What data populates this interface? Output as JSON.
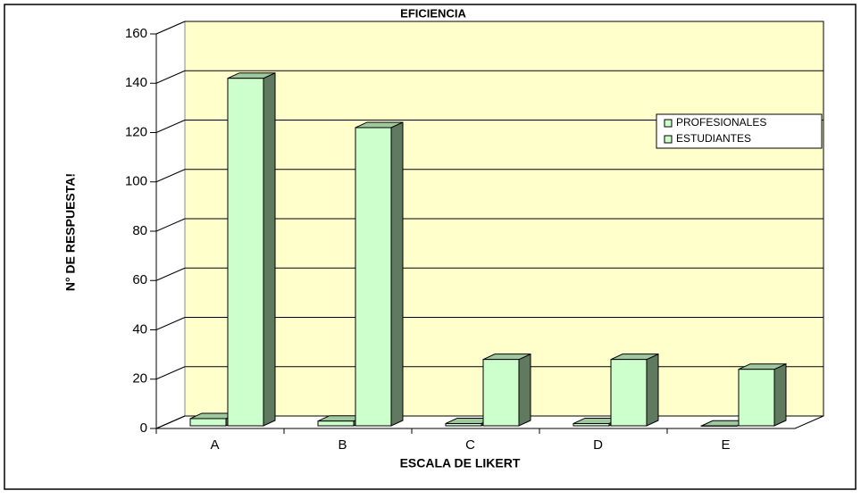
{
  "chart_data": {
    "type": "bar3d",
    "title": "EFICIENCIA",
    "x_label": "ESCALA DE LIKERT",
    "y_label": "N° DE RESPUESTA!",
    "categories": [
      "A",
      "B",
      "C",
      "D",
      "E"
    ],
    "series": [
      {
        "name": "PROFESIONALES",
        "color": "#ccffcc",
        "values": [
          4,
          3,
          2,
          2,
          1
        ]
      },
      {
        "name": "ESTUDIANTES",
        "color": "#ccffcc",
        "values": [
          142,
          122,
          28,
          28,
          24
        ]
      }
    ],
    "ylim": [
      0,
      160
    ],
    "yticks": [
      0,
      20,
      40,
      60,
      80,
      100,
      120,
      140,
      160
    ],
    "grid": true
  }
}
